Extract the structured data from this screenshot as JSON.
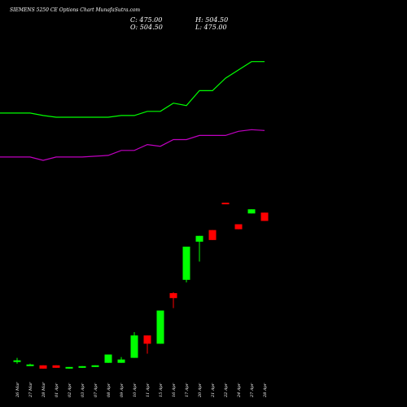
{
  "title": "SIEMENS 5250  CE Options Chart MunafaSutra.com",
  "ohlc": {
    "close": "C: 475.00",
    "open": "O: 504.50",
    "high": "H: 504.50",
    "low": "L: 475.00"
  },
  "chart_data": {
    "type": "candlestick",
    "title": "SIEMENS 5250  CE Options Chart MunafaSutra.com",
    "categories": [
      "26 Mar",
      "27 Mar",
      "28 Mar",
      "01 Apr",
      "02 Apr",
      "03 Apr",
      "07 Apr",
      "08 Apr",
      "09 Apr",
      "10 Apr",
      "11 Apr",
      "15 Apr",
      "16 Apr",
      "17 Apr",
      "20 Apr",
      "21 Apr",
      "22 Apr",
      "24 Apr",
      "27 Apr",
      "28 Apr"
    ],
    "candles": [
      {
        "open": 3,
        "high": 8,
        "low": 1,
        "close": 5
      },
      {
        "open": 0,
        "high": 1,
        "low": 0,
        "close": 0
      },
      {
        "open": -1,
        "high": -1,
        "low": -5,
        "close": -5
      },
      {
        "open": -1,
        "high": -1,
        "low": -4,
        "close": -4
      },
      {
        "open": -4,
        "high": -3,
        "low": -5,
        "close": -3
      },
      {
        "open": -4,
        "high": -2,
        "low": -4,
        "close": -2
      },
      {
        "open": -3,
        "high": -1,
        "low": -3,
        "close": -1
      },
      {
        "open": 2,
        "high": 12,
        "low": 2,
        "close": 12
      },
      {
        "open": 2,
        "high": 9,
        "low": 2,
        "close": 6
      },
      {
        "open": 8,
        "high": 39,
        "low": 8,
        "close": 35
      },
      {
        "open": 35,
        "high": 35,
        "low": 13,
        "close": 25
      },
      {
        "open": 25,
        "high": 65,
        "low": 25,
        "close": 65
      },
      {
        "open": 86,
        "high": 87,
        "low": 68,
        "close": 80
      },
      {
        "open": 102,
        "high": 142,
        "low": 99,
        "close": 142
      },
      {
        "open": 148,
        "high": 155,
        "low": 124,
        "close": 155
      },
      {
        "open": 162,
        "high": 162,
        "low": 150,
        "close": 150
      },
      {
        "open": 195,
        "high": 195,
        "low": 194,
        "close": 194
      },
      {
        "open": 169,
        "high": 169,
        "low": 163,
        "close": 163
      },
      {
        "open": 182,
        "high": 187,
        "low": 182,
        "close": 187
      },
      {
        "open": 183,
        "high": 183,
        "low": 173,
        "close": 173
      }
    ],
    "series": [
      {
        "values": [
          303,
          303,
          300,
          298,
          298,
          298,
          298,
          298,
          300,
          300,
          305,
          305,
          315,
          312,
          330,
          330,
          345,
          355,
          365,
          365
        ]
      },
      {
        "values": [
          250,
          250,
          246,
          250,
          250,
          250,
          251,
          252,
          258,
          258,
          265,
          263,
          271,
          271,
          276,
          276,
          276,
          281,
          283,
          282
        ]
      }
    ],
    "colors": {
      "up": "#00ff00",
      "down": "#ff0000",
      "upper_band": "#00ff00",
      "lower_band": "#c000c0",
      "background": "#000000"
    },
    "ylim": [
      -12,
      400
    ],
    "grid": false
  }
}
